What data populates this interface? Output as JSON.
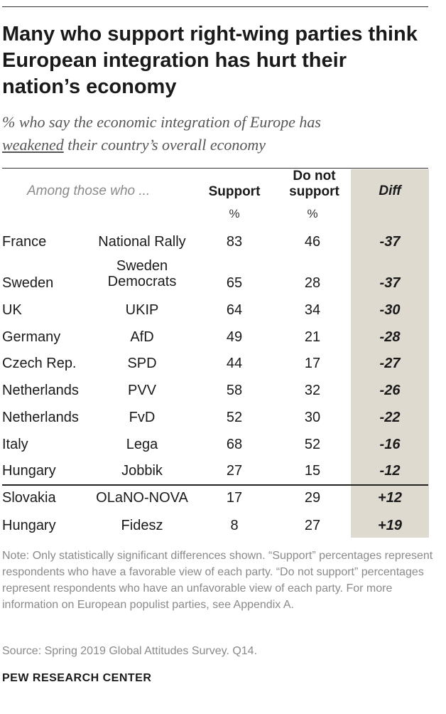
{
  "title": "Many who support right-wing parties think European integration has hurt their nation’s economy",
  "subtitle_part1": "% who say the economic integration of Europe has",
  "subtitle_underlined": "weakened",
  "subtitle_part2": "their country’s overall economy",
  "table_headers": {
    "among": "Among those who ...",
    "support": "Support",
    "not_support_line1": "Do not",
    "not_support_line2": "support",
    "diff": "Diff",
    "support_unit": "%",
    "not_support_unit": "%"
  },
  "chart_data": {
    "type": "table",
    "columns": [
      "Country",
      "Party",
      "Support",
      "Do not support",
      "Diff"
    ],
    "rows": [
      {
        "country": "France",
        "party": "National Rally",
        "support": 83,
        "not_support": 46,
        "diff": "-37"
      },
      {
        "country": "Sweden",
        "party": "Sweden Democrats",
        "party_line1": "Sweden",
        "party_line2": "Democrats",
        "support": 65,
        "not_support": 28,
        "diff": "-37"
      },
      {
        "country": "UK",
        "party": "UKIP",
        "support": 64,
        "not_support": 34,
        "diff": "-30"
      },
      {
        "country": "Germany",
        "party": "AfD",
        "support": 49,
        "not_support": 21,
        "diff": "-28"
      },
      {
        "country": "Czech Rep.",
        "party": "SPD",
        "support": 44,
        "not_support": 17,
        "diff": "-27"
      },
      {
        "country": "Netherlands",
        "party": "PVV",
        "support": 58,
        "not_support": 32,
        "diff": "-26"
      },
      {
        "country": "Netherlands",
        "party": "FvD",
        "support": 52,
        "not_support": 30,
        "diff": "-22"
      },
      {
        "country": "Italy",
        "party": "Lega",
        "support": 68,
        "not_support": 52,
        "diff": "-16"
      },
      {
        "country": "Hungary",
        "party": "Jobbik",
        "support": 27,
        "not_support": 15,
        "diff": "-12"
      },
      {
        "country": "Slovakia",
        "party": "OLaNO-NOVA",
        "support": 17,
        "not_support": 29,
        "diff": "+12"
      },
      {
        "country": "Hungary",
        "party": "Fidesz",
        "support": 8,
        "not_support": 27,
        "diff": "+19"
      }
    ],
    "diff_column_color": "#dedad0"
  },
  "note": "Note: Only statistically significant differences shown. “Support” percentages represent respondents who have a favorable view of each party. “Do not support” percentages represent respondents who have an unfavorable view of each party. For more information on European populist parties, see Appendix A.",
  "source": "Source: Spring 2019 Global Attitudes Survey. Q14.",
  "brand": "PEW RESEARCH CENTER"
}
